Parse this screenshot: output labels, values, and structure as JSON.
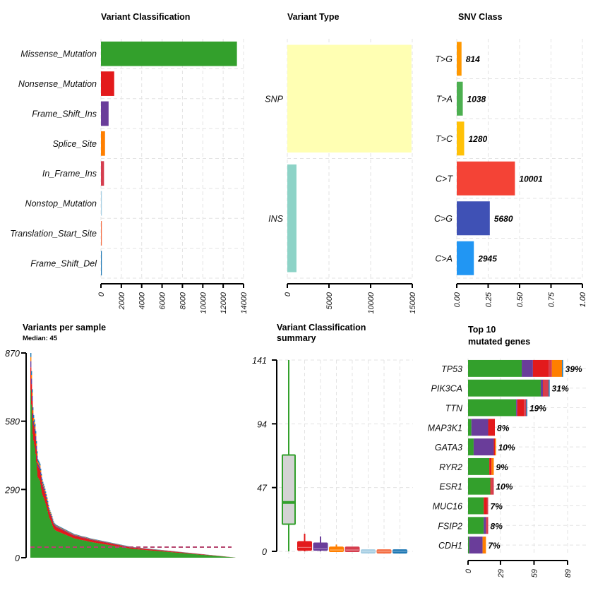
{
  "chart_data": [
    {
      "id": "variant_classification",
      "type": "bar",
      "orientation": "horizontal",
      "title": "Variant Classification",
      "categories": [
        "Missense_Mutation",
        "Nonsense_Mutation",
        "Frame_Shift_Ins",
        "Splice_Site",
        "In_Frame_Ins",
        "Nonstop_Mutation",
        "Translation_Start_Site",
        "Frame_Shift_Del"
      ],
      "values": [
        13350,
        1300,
        750,
        400,
        300,
        20,
        25,
        30
      ],
      "colors": [
        "#33a02c",
        "#e31a1c",
        "#6a3d9a",
        "#ff7f00",
        "#d53e4f",
        "#a6cee3",
        "#f46d43",
        "#1f78b4"
      ],
      "xlim": [
        0,
        14000
      ],
      "xticks": [
        "0",
        "2000",
        "4000",
        "6000",
        "8000",
        "10000",
        "12000",
        "14000"
      ],
      "xtick_values": [
        0,
        2000,
        4000,
        6000,
        8000,
        10000,
        12000,
        14000
      ],
      "grid": true
    },
    {
      "id": "variant_type",
      "type": "bar",
      "orientation": "horizontal",
      "title": "Variant Type",
      "categories": [
        "SNP",
        "INS"
      ],
      "values": [
        14900,
        1100
      ],
      "colors": [
        "#ffffb3",
        "#8dd3c7"
      ],
      "xlim": [
        0,
        15000
      ],
      "xticks": [
        "0",
        "5000",
        "10000",
        "15000"
      ],
      "xtick_values": [
        0,
        5000,
        10000,
        15000
      ],
      "grid": true
    },
    {
      "id": "snv_class",
      "type": "bar",
      "orientation": "horizontal",
      "title": "SNV Class",
      "categories": [
        "T>G",
        "T>A",
        "T>C",
        "C>T",
        "C>G",
        "C>A"
      ],
      "values": [
        814,
        1038,
        1280,
        10001,
        5680,
        2945
      ],
      "fractions": [
        0.038,
        0.048,
        0.059,
        0.463,
        0.263,
        0.136
      ],
      "labels": [
        "814",
        "1038",
        "1280",
        "10001",
        "5680",
        "2945"
      ],
      "colors": [
        "#ff9800",
        "#4caf50",
        "#ffc107",
        "#f44336",
        "#3f51b5",
        "#2196f3"
      ],
      "xlim": [
        0,
        1
      ],
      "xticks": [
        "0.00",
        "0.25",
        "0.50",
        "0.75",
        "1.00"
      ],
      "xtick_values": [
        0,
        0.25,
        0.5,
        0.75,
        1
      ],
      "grid": true
    },
    {
      "id": "variants_per_sample",
      "type": "bar",
      "stacked": true,
      "title": "Variants per sample",
      "subtitle": "Median: 45",
      "median": 45,
      "ylim": [
        0,
        870
      ],
      "yticks": [
        "0",
        "290",
        "580",
        "870"
      ],
      "ytick_values": [
        0,
        290,
        580,
        870
      ],
      "n_samples_approx": 290,
      "profile_totals": [
        870,
        620,
        560,
        420,
        400,
        330,
        300,
        260,
        210,
        185,
        150,
        140,
        135,
        130,
        125,
        120,
        115,
        110,
        105,
        100,
        98,
        95,
        92,
        90,
        88,
        85,
        82,
        80,
        78,
        76,
        74,
        72,
        70,
        68,
        66,
        64,
        62,
        60,
        58,
        56,
        54,
        52,
        50,
        48,
        46,
        45,
        44,
        43,
        42,
        41,
        40,
        39,
        38,
        37,
        36,
        35,
        34,
        33,
        32,
        31,
        30,
        29,
        28,
        27,
        26,
        25,
        24,
        23,
        22,
        21,
        20,
        19,
        18,
        17,
        16,
        15,
        14,
        13,
        12,
        11,
        10,
        9,
        8,
        7,
        6,
        5,
        4,
        3,
        2,
        1
      ],
      "series_colors": [
        "#33a02c",
        "#e31a1c",
        "#6a3d9a",
        "#ff7f00",
        "#1f78b4"
      ],
      "median_line_color": "#b5446e",
      "grid": false
    },
    {
      "id": "variant_classification_summary",
      "type": "box",
      "title": "Variant Classification summary",
      "title_lines": [
        "Variant Classification",
        "summary"
      ],
      "ylim": [
        0,
        141
      ],
      "yticks": [
        "0",
        "47",
        "94",
        "141"
      ],
      "ytick_values": [
        0,
        47,
        94,
        141
      ],
      "boxes": [
        {
          "name": "Missense_Mutation",
          "min": 0,
          "q1": 20,
          "median": 36,
          "q3": 71,
          "max": 141,
          "color": "#33a02c",
          "fill": "#d3d3d3"
        },
        {
          "name": "Nonsense_Mutation",
          "min": 0,
          "q1": 1,
          "median": 3,
          "q3": 7,
          "max": 13,
          "color": "#e31a1c",
          "fill": "#e31a1c"
        },
        {
          "name": "Frame_Shift_Ins",
          "min": 0,
          "q1": 1,
          "median": 2,
          "q3": 6,
          "max": 11,
          "color": "#6a3d9a",
          "fill": "#6a3d9a"
        },
        {
          "name": "Splice_Site",
          "min": 0,
          "q1": 0,
          "median": 1,
          "q3": 3,
          "max": 5,
          "color": "#ff7f00",
          "fill": "#ff7f00"
        },
        {
          "name": "In_Frame_Ins",
          "min": 0,
          "q1": 0,
          "median": 1,
          "q3": 3,
          "max": 3,
          "color": "#d53e4f",
          "fill": "#d53e4f"
        },
        {
          "name": "Nonstop_Mutation",
          "min": 0,
          "q1": 0,
          "median": 0,
          "q3": 1,
          "max": 1,
          "color": "#a6cee3",
          "fill": "#a6cee3"
        },
        {
          "name": "Translation_Start_Site",
          "min": 0,
          "q1": 0,
          "median": 0,
          "q3": 1,
          "max": 1,
          "color": "#f46d43",
          "fill": "#f46d43"
        },
        {
          "name": "Frame_Shift_Del",
          "min": 0,
          "q1": 0,
          "median": 0,
          "q3": 1,
          "max": 1,
          "color": "#1f78b4",
          "fill": "#1f78b4"
        }
      ],
      "grid": true
    },
    {
      "id": "top10_genes",
      "type": "bar",
      "orientation": "horizontal",
      "stacked": true,
      "title": "Top 10 mutated genes",
      "title_lines": [
        "Top 10",
        "mutated genes"
      ],
      "categories": [
        "TP53",
        "PIK3CA",
        "TTN",
        "MAP3K1",
        "GATA3",
        "RYR2",
        "ESR1",
        "MUC16",
        "FSIP2",
        "CDH1"
      ],
      "percent_labels": [
        "39%",
        "31%",
        "19%",
        "8%",
        "10%",
        "9%",
        "10%",
        "7%",
        "8%",
        "7%"
      ],
      "series_names": [
        "Missense_Mutation",
        "Frame_Shift_Ins",
        "Nonsense_Mutation",
        "In_Frame_Ins",
        "Splice_Site",
        "Frame_Shift_Del"
      ],
      "series_colors": [
        "#33a02c",
        "#6a3d9a",
        "#e31a1c",
        "#d53e4f",
        "#ff7f00",
        "#1f78b4"
      ],
      "series": [
        {
          "name": "Missense_Mutation",
          "values": [
            48,
            65,
            43,
            3,
            5,
            19,
            20,
            14,
            14,
            1
          ]
        },
        {
          "name": "Frame_Shift_Ins",
          "values": [
            10,
            2,
            1,
            15,
            18,
            0,
            0,
            0,
            2,
            12
          ]
        },
        {
          "name": "Nonsense_Mutation",
          "values": [
            14,
            1,
            6,
            6,
            1,
            2,
            1,
            3,
            0,
            0
          ]
        },
        {
          "name": "In_Frame_Ins",
          "values": [
            3,
            4,
            2,
            0,
            0,
            0,
            2,
            1,
            2,
            0
          ]
        },
        {
          "name": "Splice_Site",
          "values": [
            9,
            0,
            0,
            0,
            1,
            2,
            0,
            0,
            0,
            3
          ]
        },
        {
          "name": "Frame_Shift_Del",
          "values": [
            1,
            1,
            1,
            0,
            0,
            0,
            0,
            0,
            0,
            0
          ]
        }
      ],
      "xlim": [
        0,
        89
      ],
      "xticks": [
        "0",
        "29",
        "59",
        "89"
      ],
      "xtick_values": [
        0,
        29,
        59,
        89
      ],
      "grid": true
    }
  ]
}
